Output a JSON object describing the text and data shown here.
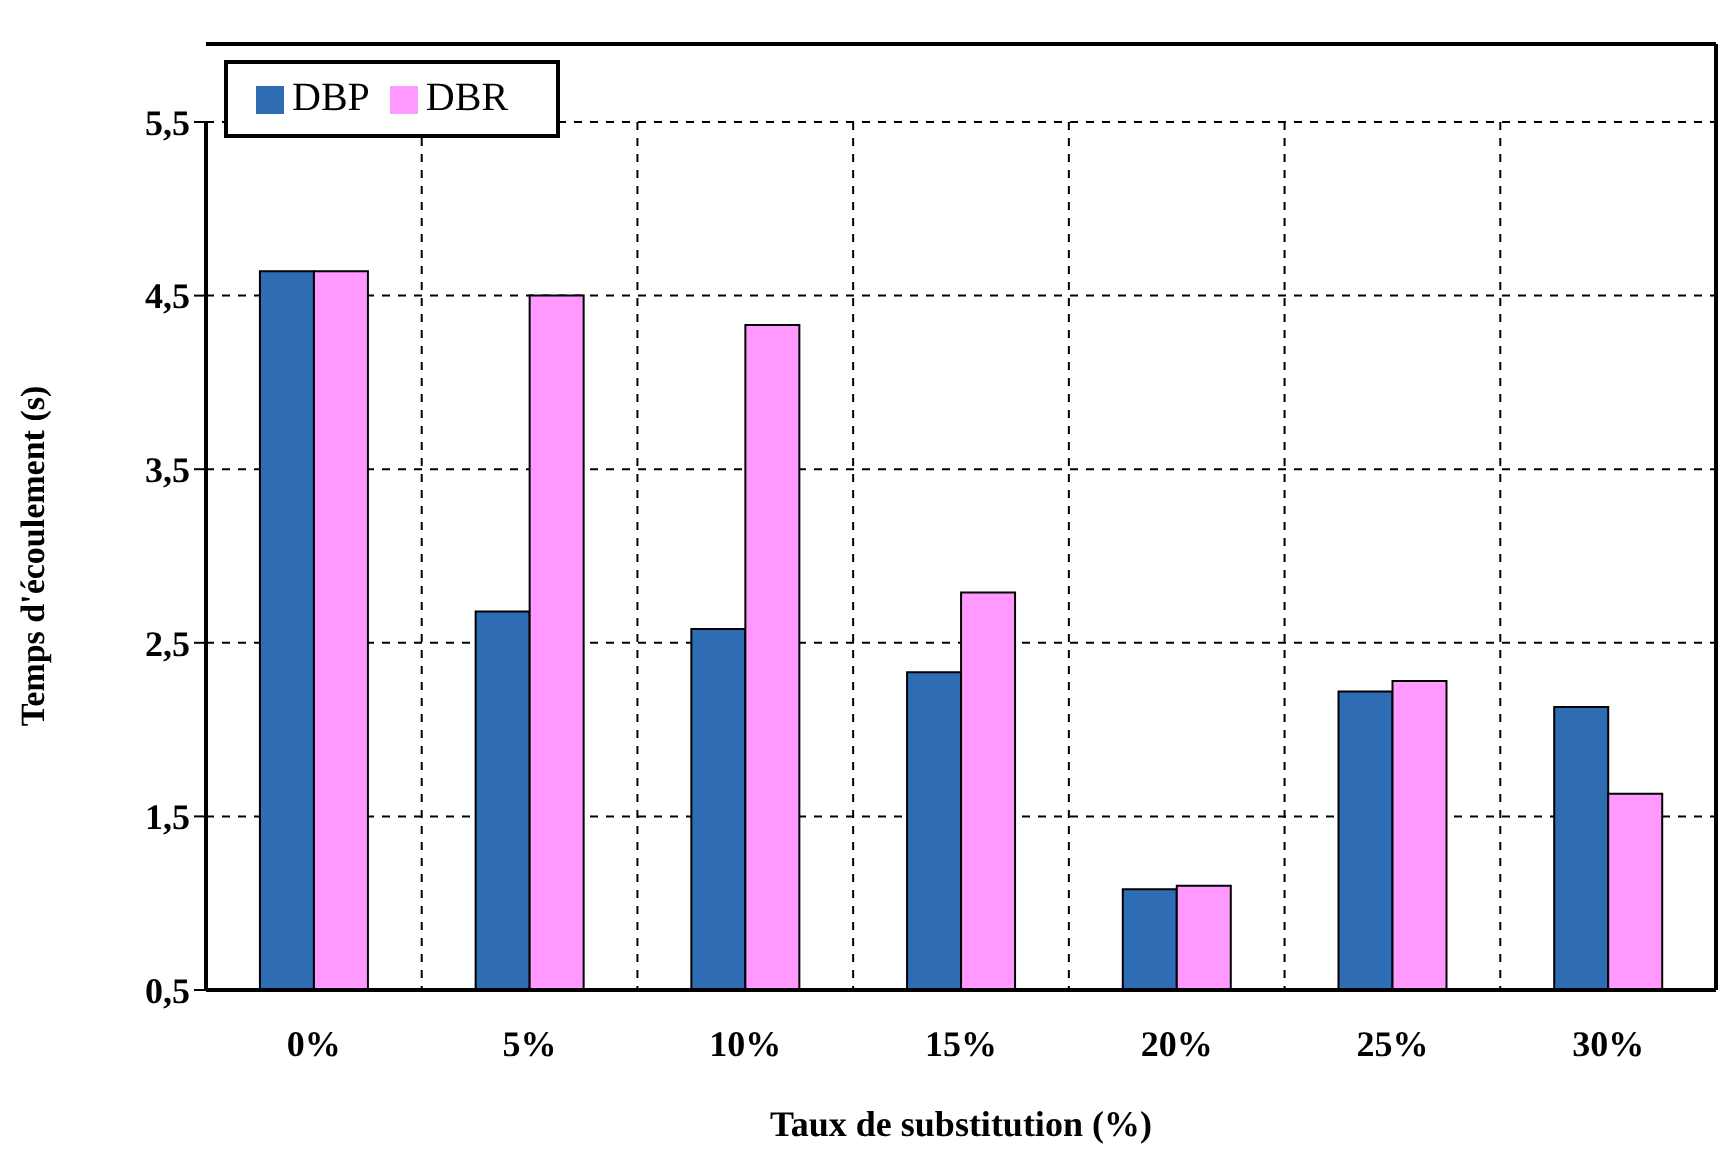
{
  "chart_data": {
    "type": "bar",
    "xlabel": "Taux de substitution (%)",
    "ylabel": "Temps d'écoulement (s)",
    "categories": [
      "0%",
      "5%",
      "10%",
      "15%",
      "20%",
      "25%",
      "30%"
    ],
    "series": [
      {
        "name": "DBP",
        "color": "#2e6db4",
        "values": [
          4.64,
          2.68,
          2.58,
          2.33,
          1.08,
          2.22,
          2.13
        ]
      },
      {
        "name": "DBR",
        "color": "#ff99ff",
        "values": [
          4.64,
          4.5,
          4.33,
          2.79,
          1.1,
          2.28,
          1.63
        ]
      }
    ],
    "ylim": [
      0.5,
      5.5
    ],
    "yticks": [
      {
        "value": 0.5,
        "label": "0,5"
      },
      {
        "value": 1.5,
        "label": "1,5"
      },
      {
        "value": 2.5,
        "label": "2,5"
      },
      {
        "value": 3.5,
        "label": "3,5"
      },
      {
        "value": 4.5,
        "label": "4,5"
      },
      {
        "value": 5.5,
        "label": "5,5"
      }
    ],
    "grid": true,
    "legend": "top left"
  }
}
